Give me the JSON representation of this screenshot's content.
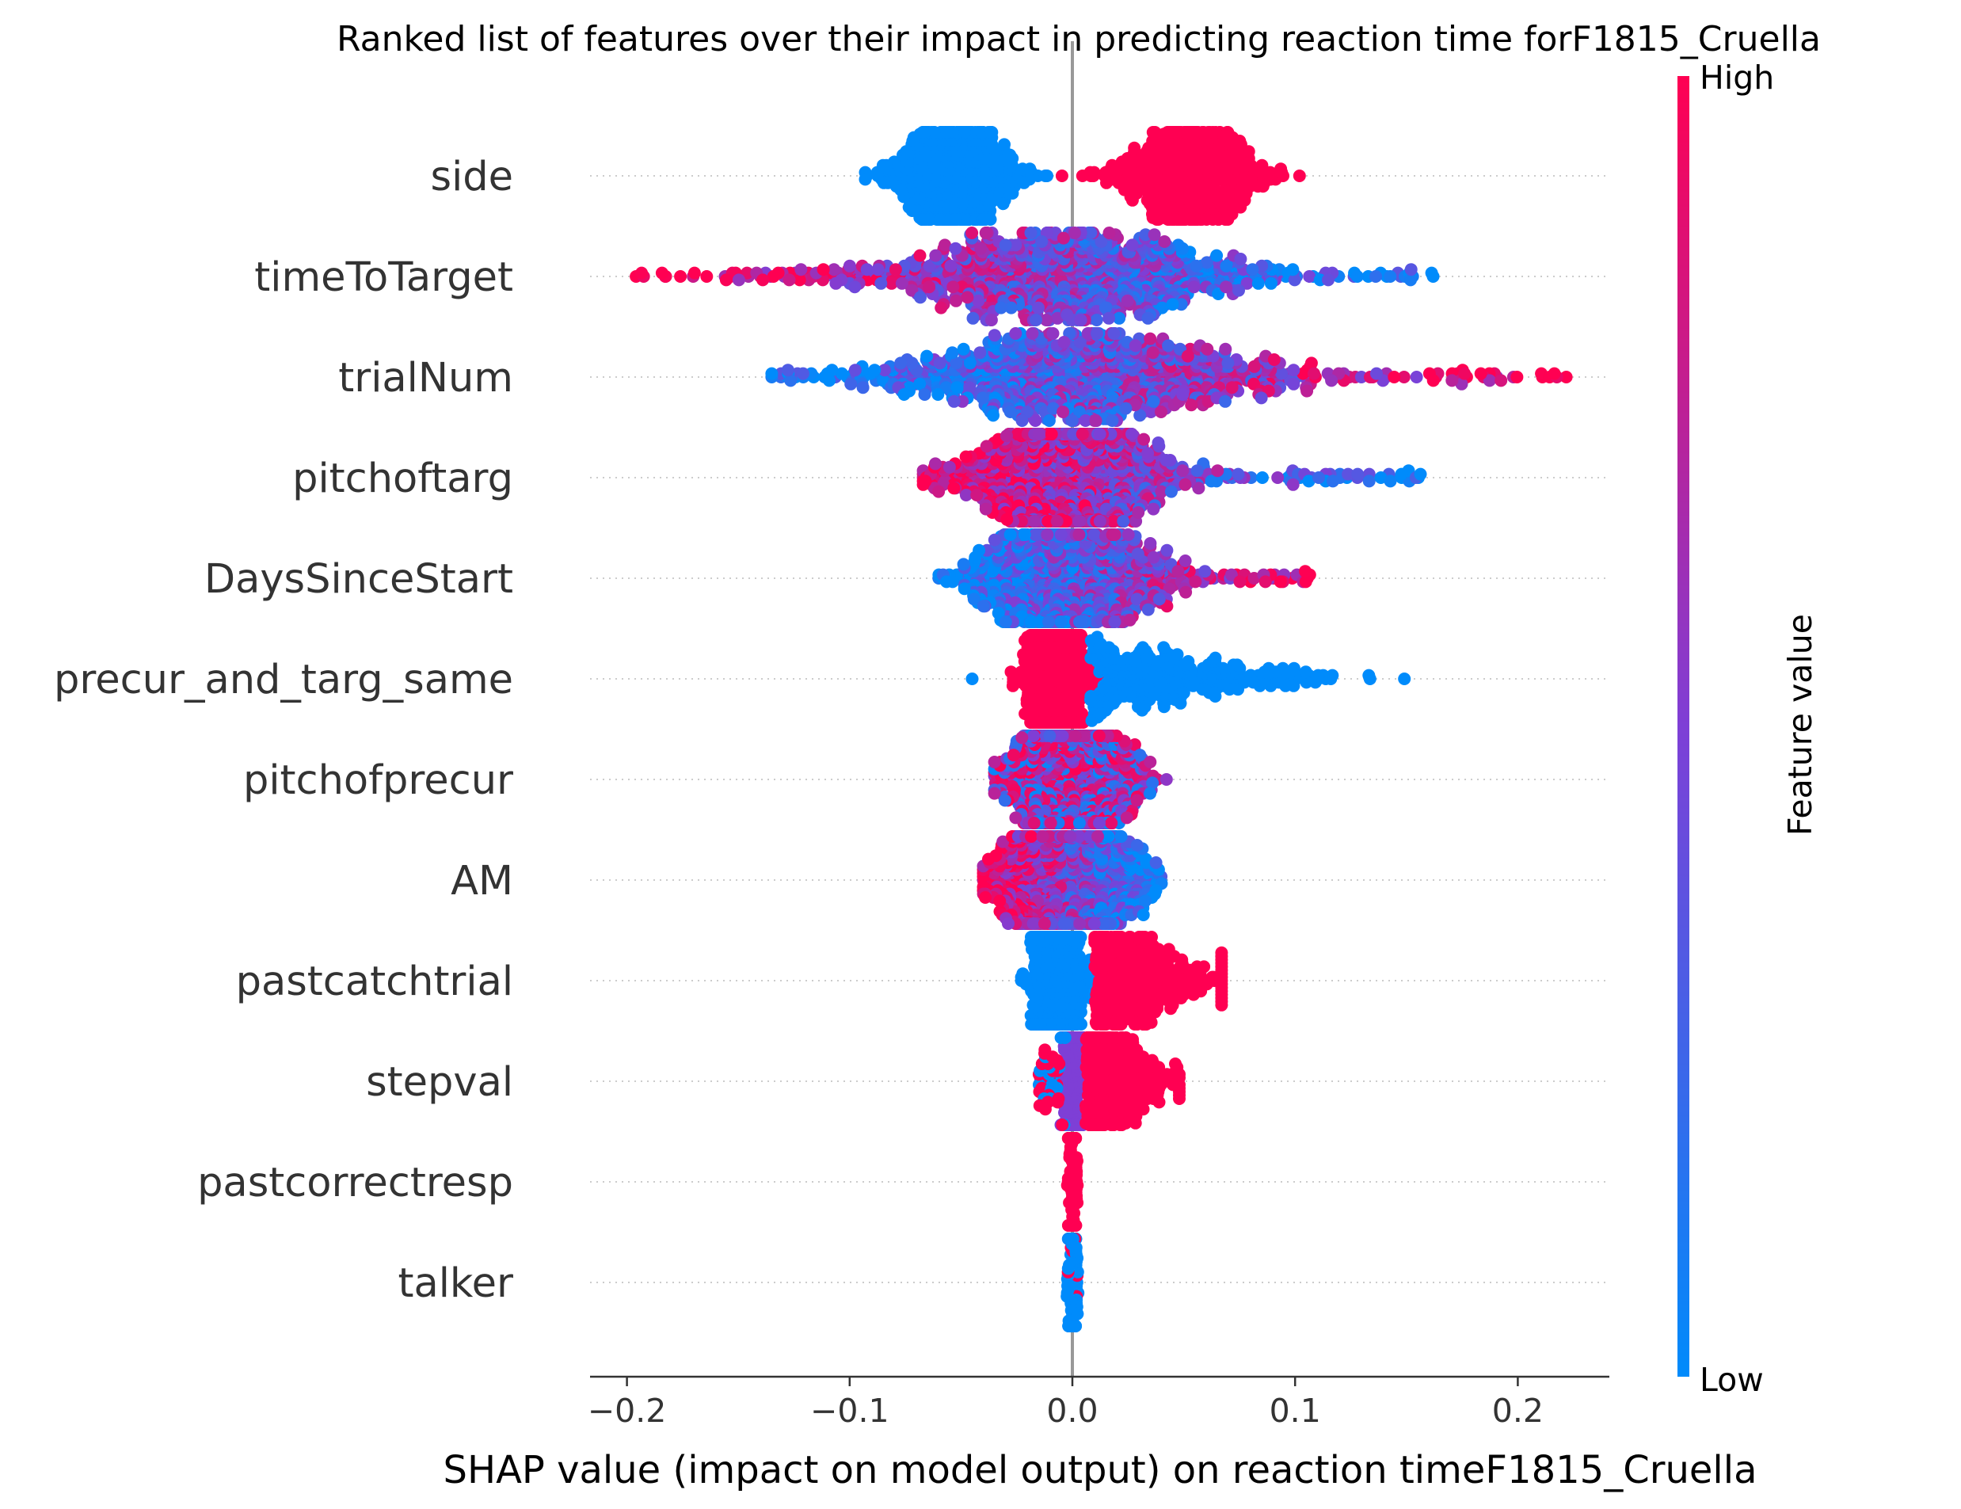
{
  "chart_data": {
    "type": "scatter",
    "subtype": "shap-beeswarm",
    "title": "Ranked list of features over their impact in predicting reaction time forF1815_Cruella",
    "xlabel": "SHAP value (impact on model output) on reaction timeF1815_Cruella",
    "xlim": [
      -0.22,
      0.24
    ],
    "xticks": [
      -0.2,
      -0.1,
      0.0,
      0.1,
      0.2
    ],
    "xtick_labels": [
      "−0.2",
      "−0.1",
      "0.0",
      "0.1",
      "0.2"
    ],
    "grid": "dotted row lines",
    "colorbar": {
      "title": "Feature value",
      "high_label": "High",
      "low_label": "Low",
      "high_color": "#ff0052",
      "mid_color": "#7e3fd6",
      "low_color": "#008bfb"
    },
    "zero_line_color": "#999999",
    "features": [
      {
        "name": "side",
        "range": [
          -0.093,
          0.102
        ],
        "pattern": "split",
        "low_side": "negative",
        "low_range": [
          -0.093,
          -0.018
        ],
        "high_range": [
          0.013,
          0.102
        ],
        "center_low": -0.053,
        "center_high": 0.053
      },
      {
        "name": "timeToTarget",
        "range": [
          -0.2,
          0.162
        ],
        "pattern": "spread",
        "high_side": "negative",
        "core": [
          -0.1,
          0.09
        ]
      },
      {
        "name": "trialNum",
        "range": [
          -0.135,
          0.222
        ],
        "pattern": "spread",
        "high_side": "positive",
        "core": [
          -0.09,
          0.1
        ]
      },
      {
        "name": "pitchoftarg",
        "range": [
          -0.067,
          0.157
        ],
        "pattern": "spread",
        "high_side": "negative",
        "core": [
          -0.05,
          0.05
        ]
      },
      {
        "name": "DaysSinceStart",
        "range": [
          -0.06,
          0.11
        ],
        "pattern": "spread",
        "high_side": "positive",
        "core": [
          -0.045,
          0.04
        ]
      },
      {
        "name": "precur_and_targ_same",
        "range": [
          -0.045,
          0.165
        ],
        "pattern": "split-cluster",
        "high_range": [
          -0.025,
          0.005
        ],
        "low_range": [
          0.008,
          0.165
        ]
      },
      {
        "name": "pitchofprecur",
        "range": [
          -0.035,
          0.057
        ],
        "pattern": "mixed",
        "core": [
          -0.03,
          0.04
        ]
      },
      {
        "name": "AM",
        "range": [
          -0.04,
          0.04
        ],
        "pattern": "spread",
        "high_side": "negative",
        "core": [
          -0.035,
          0.03
        ]
      },
      {
        "name": "pastcatchtrial",
        "range": [
          -0.025,
          0.067
        ],
        "pattern": "split-cluster",
        "low_range": [
          -0.025,
          0.005
        ],
        "high_range": [
          0.005,
          0.067
        ]
      },
      {
        "name": "stepval",
        "range": [
          -0.025,
          0.048
        ],
        "pattern": "split-cluster",
        "mid_range": [
          -0.01,
          0.005
        ],
        "high_range": [
          0.005,
          0.048
        ]
      },
      {
        "name": "pastcorrectresp",
        "range": [
          -0.003,
          0.003
        ],
        "pattern": "thin",
        "dominant": "high"
      },
      {
        "name": "talker",
        "range": [
          -0.003,
          0.003
        ],
        "pattern": "thin",
        "dominant": "low"
      }
    ]
  }
}
